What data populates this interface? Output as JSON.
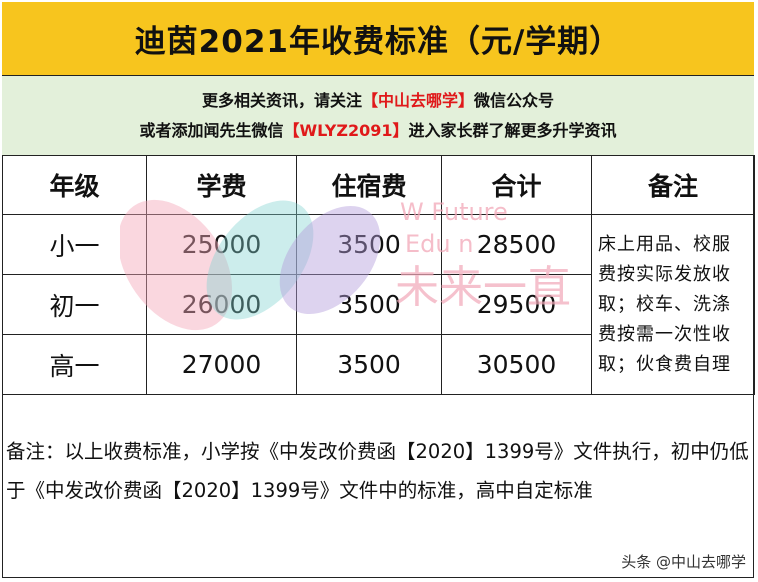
{
  "title": "迪茵2021年收费标准（元/学期）",
  "notice": {
    "line1_pre": "更多相关资讯，请关注",
    "line1_highlight": "【中山去哪学】",
    "line1_post": "微信公众号",
    "line2_pre": "或者添加闻先生微信",
    "line2_highlight": "【WLYZ2091】",
    "line2_post": "进入家长群了解更多升学资讯"
  },
  "table": {
    "headers": [
      "年级",
      "学费",
      "住宿费",
      "合计",
      "备注"
    ],
    "rows": [
      [
        "小一",
        "25000",
        "3500",
        "28500"
      ],
      [
        "初一",
        "26000",
        "3500",
        "29500"
      ],
      [
        "高一",
        "27000",
        "3500",
        "30500"
      ]
    ],
    "remark": "床上用品、校服费按实际发放收取；校车、洗涤费按需一次性收取；伙食费自理"
  },
  "footnote": "备注：以上收费标准，小学按《中发改价费函【2020】1399号》文件执行，初中仍低于《中发改价费函【2020】1399号》文件中的标准，高中自定标准",
  "watermark": {
    "line1": "W    Future",
    "line2": "Edu       n",
    "line3": "未来一直"
  },
  "credit": "头条 @中山去哪学",
  "colors": {
    "title_bg": "#f7c51e",
    "notice_bg": "#e3f0da",
    "highlight": "#e0191a"
  }
}
